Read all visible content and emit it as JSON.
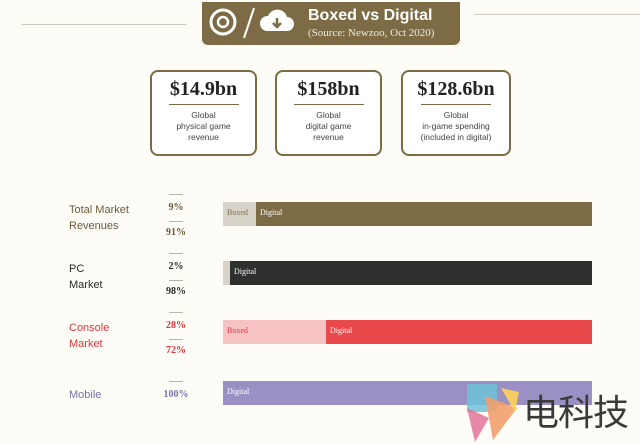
{
  "header": {
    "title": "Boxed vs Digital",
    "source": "(Source: Newzoo, Oct 2020)",
    "icons": [
      "disc-icon",
      "cloud-download-icon"
    ],
    "color": "#7d6b45"
  },
  "stats": [
    {
      "value": "$14.9bn",
      "label": "Global\nphysical game\nrevenue"
    },
    {
      "value": "$158bn",
      "label": "Global\ndigital game\nrevenue"
    },
    {
      "value": "$128.6bn",
      "label": "Global\nin-game spending\n(included in digital)"
    }
  ],
  "chart_data": {
    "type": "bar",
    "orientation": "horizontal",
    "stacked": true,
    "percent_axis": [
      0,
      100
    ],
    "categories": [
      "Total Market Revenues",
      "PC Market",
      "Console Market",
      "Mobile"
    ],
    "rows": [
      {
        "label": "Total Market\nRevenues",
        "boxed": 9,
        "digital": 91,
        "boxed_pct": "9%",
        "digital_pct": "91%",
        "boxed_label": "Boxed",
        "digital_label": "Digital",
        "text_color": "#6b5a3a",
        "boxed_color": "#d8d3c8",
        "digital_color": "#7d6b45"
      },
      {
        "label": "PC\nMarket",
        "boxed": 2,
        "digital": 98,
        "boxed_pct": "2%",
        "digital_pct": "98%",
        "boxed_label": "",
        "digital_label": "Digital",
        "text_color": "#2b2b2b",
        "boxed_color": "#d8d3c8",
        "digital_color": "#2e312d"
      },
      {
        "label": "Console\nMarket",
        "boxed": 28,
        "digital": 72,
        "boxed_pct": "28%",
        "digital_pct": "72%",
        "boxed_label": "Boxed",
        "digital_label": "Digital",
        "text_color": "#e0353a",
        "boxed_color": "#f6c2c3",
        "digital_color": "#e9484b"
      },
      {
        "label": "Mobile",
        "boxed": 0,
        "digital": 100,
        "boxed_pct": "",
        "digital_pct": "100%",
        "boxed_label": "",
        "digital_label": "Digital",
        "text_color": "#7b72a8",
        "boxed_color": "#c9c3e0",
        "digital_color": "#9b90c4"
      }
    ]
  },
  "watermark": {
    "text": "电科技"
  }
}
